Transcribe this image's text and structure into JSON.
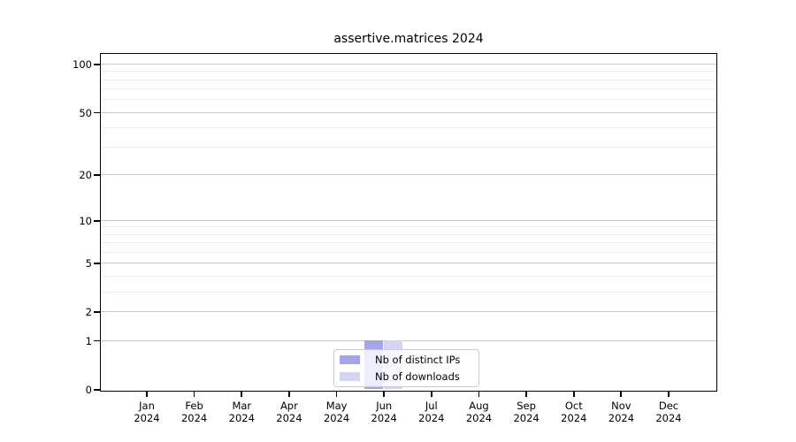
{
  "chart_data": {
    "type": "bar",
    "title": "assertive.matrices 2024",
    "scale": "log1p",
    "xlabel": "",
    "ylabel": "",
    "ylim": [
      0,
      115
    ],
    "y_major_ticks": [
      0,
      1,
      2,
      5,
      10,
      20,
      50,
      100
    ],
    "y_minor_ticks": [
      3,
      4,
      6,
      7,
      8,
      9,
      30,
      40,
      60,
      70,
      80,
      90
    ],
    "grid": "on",
    "categories": [
      "Jan",
      "Feb",
      "Mar",
      "Apr",
      "May",
      "Jun",
      "Jul",
      "Aug",
      "Sep",
      "Oct",
      "Nov",
      "Dec"
    ],
    "year_label": "2024",
    "series": [
      {
        "name": "Nb of distinct IPs",
        "color": "#a4a4ec",
        "values": [
          0,
          0,
          0,
          0,
          0,
          1,
          0,
          0,
          0,
          0,
          0,
          0
        ]
      },
      {
        "name": "Nb of downloads",
        "color": "#d4d4f4",
        "values": [
          0,
          0,
          0,
          0,
          0,
          1,
          0,
          0,
          0,
          0,
          0,
          0
        ]
      }
    ],
    "legend_position": "bottom-center"
  },
  "colors": {
    "major_grid": "#c8c8c8",
    "minor_grid": "#ededed",
    "axis": "#000000",
    "legend_border": "#cccccc"
  }
}
